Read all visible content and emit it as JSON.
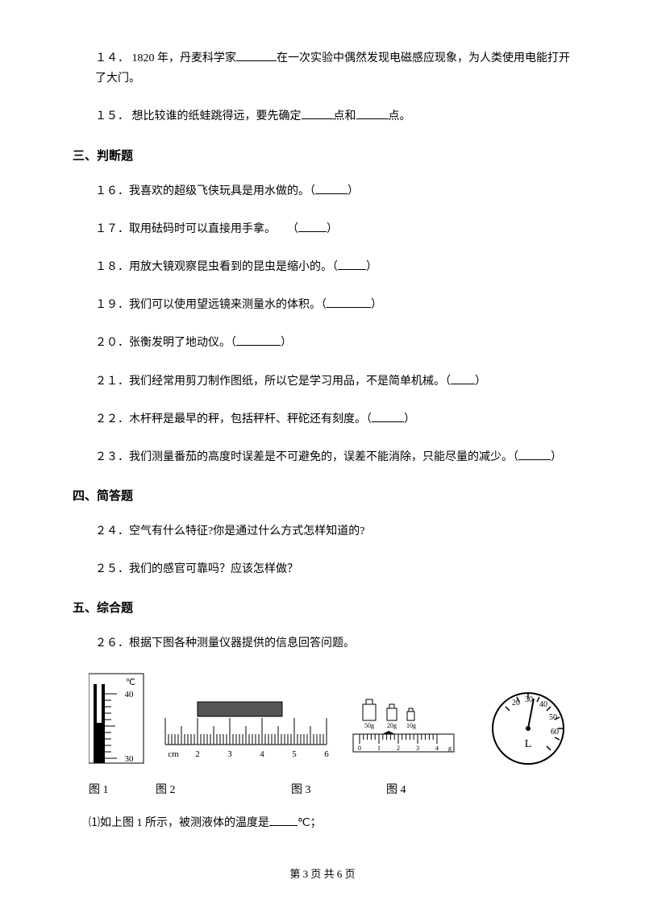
{
  "q14": {
    "num": "１４．",
    "text_a": "1820 年，丹麦科学家",
    "text_b": "在一次实验中偶然发现电磁感应现象，为人类使用电能打开了大门。"
  },
  "q15": {
    "num": "１５．",
    "text_a": "想比较谁的纸蛙跳得远，要先确定",
    "text_b": "点和",
    "text_c": "点。"
  },
  "sec3": "三、判断题",
  "q16": {
    "num": "１６．",
    "text": "我喜欢的超级飞侠玩具是用水做的。（",
    "close": "）"
  },
  "q17": {
    "num": "１７．",
    "text": "取用砝码时可以直接用手拿。　　（",
    "close": "）"
  },
  "q18": {
    "num": "１８．",
    "text": "用放大镜观察昆虫看到的昆虫是缩小的。（",
    "close": "）"
  },
  "q19": {
    "num": "１９．",
    "text": "我们可以使用望远镜来测量水的体积。（",
    "close": "）"
  },
  "q20": {
    "num": "２０．",
    "text": "张衡发明了地动仪。（",
    "close": "）"
  },
  "q21": {
    "num": "２１．",
    "text": "我们经常用剪刀制作图纸，所以它是学习用品，不是简单机械。（",
    "close": "）"
  },
  "q22": {
    "num": "２２．",
    "text": "木杆秤是最早的秤，包括秤杆、秤砣还有刻度。（",
    "close": "）"
  },
  "q23": {
    "num": "２３．",
    "text": "我们测量番茄的高度时误差是不可避免的，误差不能消除，只能尽量的减少。（",
    "close": "）"
  },
  "sec4": "四、简答题",
  "q24": {
    "num": "２４．",
    "text": "空气有什么特征?你是通过什么方式怎样知道的?"
  },
  "q25": {
    "num": "２５．",
    "text": "我们的感官可靠吗？应该怎样做？"
  },
  "sec5": "五、综合题",
  "q26": {
    "num": "２６．",
    "text": "根据下图各种测量仪器提供的信息回答问题。"
  },
  "fig1": {
    "label": "图 1",
    "unit": "℃",
    "marks": [
      "40",
      "30"
    ]
  },
  "fig2": {
    "label": "图 2",
    "unit": "cm",
    "nums": [
      "2",
      "3",
      "4",
      "5",
      "6"
    ]
  },
  "fig3": {
    "label": "图 3",
    "weights": [
      "50g",
      "20g",
      "10g"
    ],
    "nums_left": "0",
    "nums_right": "4",
    "unit": "g",
    "ticks": [
      "0",
      "1",
      "2",
      "3",
      "4"
    ]
  },
  "fig4": {
    "label": "图 4",
    "nums": [
      "20",
      "30",
      "40",
      "50",
      "60"
    ],
    "unit": "L"
  },
  "fig_labels_gap": [
    0,
    75,
    165,
    100
  ],
  "sub1": {
    "text_a": "⑴如上图 1 所示，被测液体的温度是",
    "text_b": "℃；"
  },
  "footer": "第 3 页 共 6 页",
  "colors": {
    "black": "#000000",
    "white": "#ffffff",
    "gray": "#777777"
  }
}
